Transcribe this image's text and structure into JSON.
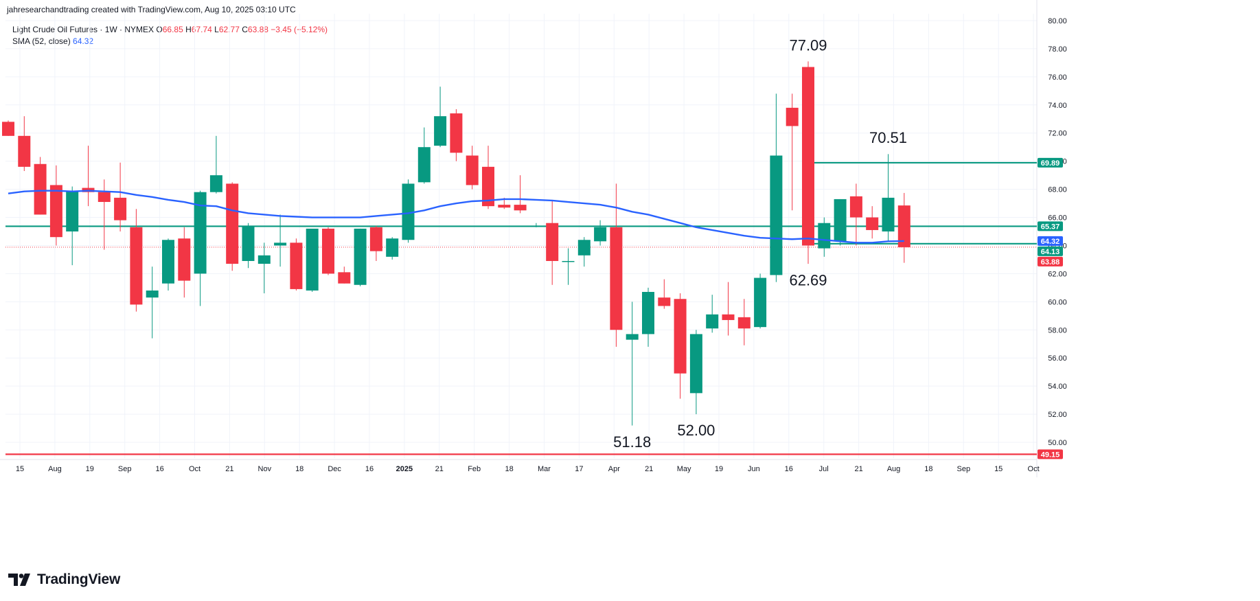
{
  "header": {
    "attribution": "jahresearchandtrading created with TradingView.com, Aug 10, 2025 03:10 UTC"
  },
  "legend": {
    "symbol": "Light Crude Oil Futures · 1W · NYMEX",
    "o_label": "O",
    "o_value": "66.85",
    "h_label": "H",
    "h_value": "67.74",
    "l_label": "L",
    "l_value": "62.77",
    "c_label": "C",
    "c_value": "63.88",
    "change": "−3.45 (−5.12%)",
    "sma_label": "SMA (52, close)",
    "sma_value": "64.32"
  },
  "brand": {
    "name": "TradingView"
  },
  "colors": {
    "up": "#089981",
    "down": "#f23645",
    "sma": "#2962ff",
    "grid": "#f0f3fa",
    "text": "#131722"
  },
  "chart_data": {
    "type": "candlestick",
    "ylim": [
      48.8,
      80.3
    ],
    "y_ticks": [
      "50.00",
      "52.00",
      "54.00",
      "56.00",
      "58.00",
      "60.00",
      "62.00",
      "64.00",
      "66.00",
      "68.00",
      "70.00",
      "72.00",
      "74.00",
      "76.00",
      "78.00",
      "80.00"
    ],
    "x_ticks": [
      "15",
      "Aug",
      "19",
      "Sep",
      "16",
      "Oct",
      "21",
      "Nov",
      "18",
      "Dec",
      "16",
      "2025",
      "21",
      "Feb",
      "18",
      "Mar",
      "17",
      "Apr",
      "21",
      "May",
      "19",
      "Jun",
      "16",
      "Jul",
      "21",
      "Aug",
      "18",
      "Sep",
      "15",
      "Oct"
    ],
    "candles": [
      {
        "o": 72.8,
        "h": 72.9,
        "l": 71.8,
        "c": 71.8
      },
      {
        "o": 71.8,
        "h": 73.2,
        "l": 69.3,
        "c": 69.6
      },
      {
        "o": 69.8,
        "h": 70.3,
        "l": 66.2,
        "c": 66.2
      },
      {
        "o": 68.3,
        "h": 69.7,
        "l": 64.0,
        "c": 64.6
      },
      {
        "o": 65.0,
        "h": 68.2,
        "l": 62.6,
        "c": 67.9
      },
      {
        "o": 68.1,
        "h": 71.1,
        "l": 66.8,
        "c": 67.8
      },
      {
        "o": 67.8,
        "h": 68.7,
        "l": 63.7,
        "c": 67.1
      },
      {
        "o": 67.4,
        "h": 69.9,
        "l": 65.0,
        "c": 65.8
      },
      {
        "o": 65.3,
        "h": 66.6,
        "l": 59.3,
        "c": 59.8
      },
      {
        "o": 60.3,
        "h": 62.5,
        "l": 57.4,
        "c": 60.8
      },
      {
        "o": 61.3,
        "h": 64.5,
        "l": 60.8,
        "c": 64.4
      },
      {
        "o": 64.5,
        "h": 65.3,
        "l": 60.3,
        "c": 61.5
      },
      {
        "o": 62.0,
        "h": 67.9,
        "l": 59.7,
        "c": 67.8
      },
      {
        "o": 67.8,
        "h": 71.8,
        "l": 67.7,
        "c": 69.0
      },
      {
        "o": 68.4,
        "h": 68.5,
        "l": 62.2,
        "c": 62.7
      },
      {
        "o": 62.9,
        "h": 65.6,
        "l": 62.4,
        "c": 65.4
      },
      {
        "o": 62.7,
        "h": 64.2,
        "l": 60.6,
        "c": 63.3
      },
      {
        "o": 64.0,
        "h": 66.2,
        "l": 62.5,
        "c": 64.2
      },
      {
        "o": 64.2,
        "h": 64.5,
        "l": 60.8,
        "c": 60.9
      },
      {
        "o": 60.8,
        "h": 65.1,
        "l": 60.7,
        "c": 65.2
      },
      {
        "o": 65.2,
        "h": 65.3,
        "l": 61.9,
        "c": 62.0
      },
      {
        "o": 62.1,
        "h": 62.5,
        "l": 61.3,
        "c": 61.3
      },
      {
        "o": 61.2,
        "h": 65.2,
        "l": 61.1,
        "c": 65.2
      },
      {
        "o": 65.3,
        "h": 65.4,
        "l": 62.9,
        "c": 63.6
      },
      {
        "o": 63.2,
        "h": 64.6,
        "l": 63.0,
        "c": 64.5
      },
      {
        "o": 64.4,
        "h": 68.7,
        "l": 64.2,
        "c": 68.4
      },
      {
        "o": 68.5,
        "h": 72.4,
        "l": 68.4,
        "c": 71.0
      },
      {
        "o": 71.1,
        "h": 75.3,
        "l": 71.0,
        "c": 73.2
      },
      {
        "o": 73.4,
        "h": 73.7,
        "l": 70.0,
        "c": 70.6
      },
      {
        "o": 70.4,
        "h": 71.1,
        "l": 68.0,
        "c": 68.3
      },
      {
        "o": 69.6,
        "h": 71.1,
        "l": 66.6,
        "c": 66.8
      },
      {
        "o": 66.9,
        "h": 67.4,
        "l": 66.6,
        "c": 66.7
      },
      {
        "o": 66.9,
        "h": 69.0,
        "l": 66.3,
        "c": 66.5
      },
      {
        "o": 65.4,
        "h": 65.6,
        "l": 65.3,
        "c": 65.4
      },
      {
        "o": 65.6,
        "h": 67.2,
        "l": 61.2,
        "c": 62.9
      },
      {
        "o": 62.9,
        "h": 63.8,
        "l": 61.2,
        "c": 62.9
      },
      {
        "o": 63.3,
        "h": 64.6,
        "l": 62.5,
        "c": 64.4
      },
      {
        "o": 64.3,
        "h": 65.8,
        "l": 64.0,
        "c": 65.3
      },
      {
        "o": 65.3,
        "h": 68.4,
        "l": 56.8,
        "c": 58.0
      },
      {
        "o": 57.3,
        "h": 60.0,
        "l": 51.2,
        "c": 57.7
      },
      {
        "o": 57.7,
        "h": 61.0,
        "l": 56.8,
        "c": 60.7
      },
      {
        "o": 60.3,
        "h": 61.6,
        "l": 59.5,
        "c": 59.7
      },
      {
        "o": 60.2,
        "h": 60.6,
        "l": 53.1,
        "c": 54.9
      },
      {
        "o": 53.5,
        "h": 58.0,
        "l": 52.0,
        "c": 57.7
      },
      {
        "o": 58.1,
        "h": 60.5,
        "l": 57.8,
        "c": 59.1
      },
      {
        "o": 59.1,
        "h": 61.4,
        "l": 57.6,
        "c": 58.7
      },
      {
        "o": 58.9,
        "h": 60.2,
        "l": 56.9,
        "c": 58.1
      },
      {
        "o": 58.2,
        "h": 62.0,
        "l": 58.1,
        "c": 61.7
      },
      {
        "o": 61.9,
        "h": 74.8,
        "l": 61.4,
        "c": 70.4
      },
      {
        "o": 73.8,
        "h": 74.8,
        "l": 66.5,
        "c": 72.5
      },
      {
        "o": 76.7,
        "h": 77.1,
        "l": 62.7,
        "c": 64.0
      },
      {
        "o": 63.8,
        "h": 66.0,
        "l": 63.2,
        "c": 65.6
      },
      {
        "o": 64.3,
        "h": 67.3,
        "l": 64.0,
        "c": 67.3
      },
      {
        "o": 67.5,
        "h": 68.4,
        "l": 64.0,
        "c": 66.0
      },
      {
        "o": 66.0,
        "h": 66.8,
        "l": 64.5,
        "c": 65.1
      },
      {
        "o": 65.0,
        "h": 70.5,
        "l": 64.3,
        "c": 67.4
      },
      {
        "o": 66.85,
        "h": 67.74,
        "l": 62.77,
        "c": 63.88
      }
    ],
    "sma": [
      67.7,
      67.85,
      67.9,
      67.9,
      67.85,
      67.9,
      67.85,
      67.8,
      67.6,
      67.45,
      67.25,
      67.1,
      66.85,
      66.8,
      66.5,
      66.3,
      66.2,
      66.1,
      66.05,
      66.0,
      66.0,
      66.0,
      66.0,
      66.1,
      66.2,
      66.3,
      66.5,
      66.8,
      67.0,
      67.15,
      67.2,
      67.3,
      67.3,
      67.25,
      67.2,
      67.1,
      67.0,
      66.9,
      66.7,
      66.4,
      66.2,
      65.9,
      65.6,
      65.3,
      65.1,
      64.9,
      64.7,
      64.55,
      64.5,
      64.45,
      64.5,
      64.4,
      64.3,
      64.2,
      64.2,
      64.3,
      64.32
    ],
    "hlines": [
      {
        "price": 69.89,
        "label": "69.89",
        "color": "#089981",
        "x_start_index": 50
      },
      {
        "price": 65.37,
        "label": "65.37",
        "color": "#089981",
        "x_start_index": -1
      },
      {
        "price": 64.13,
        "label": "64.13",
        "color": "#089981",
        "x_start_index": 50
      },
      {
        "price": 49.15,
        "label": "49.15",
        "color": "#f23645",
        "x_start_index": -1
      }
    ],
    "price_tags": [
      {
        "label": "65.37",
        "price": 65.37,
        "color": "#089981"
      },
      {
        "label": "64.32",
        "price": 64.32,
        "color": "#2962ff"
      },
      {
        "label": "64.13",
        "price": 64.13,
        "color": "#089981"
      },
      {
        "label": "63.88",
        "price": 63.88,
        "color": "#f23645"
      },
      {
        "label": "69.89",
        "price": 69.89,
        "color": "#089981"
      },
      {
        "label": "49.15",
        "price": 49.15,
        "color": "#f23645"
      }
    ],
    "annotations": [
      {
        "text": "77.09",
        "candle_index": 50,
        "price": 77.09,
        "position": "above"
      },
      {
        "text": "70.51",
        "candle_index": 55,
        "price": 70.51,
        "position": "above"
      },
      {
        "text": "62.69",
        "candle_index": 50,
        "price": 62.69,
        "position": "below"
      },
      {
        "text": "51.18",
        "candle_index": 39,
        "price": 51.18,
        "position": "below"
      },
      {
        "text": "52.00",
        "candle_index": 43,
        "price": 52.0,
        "position": "below"
      }
    ],
    "last_close": 63.88
  }
}
